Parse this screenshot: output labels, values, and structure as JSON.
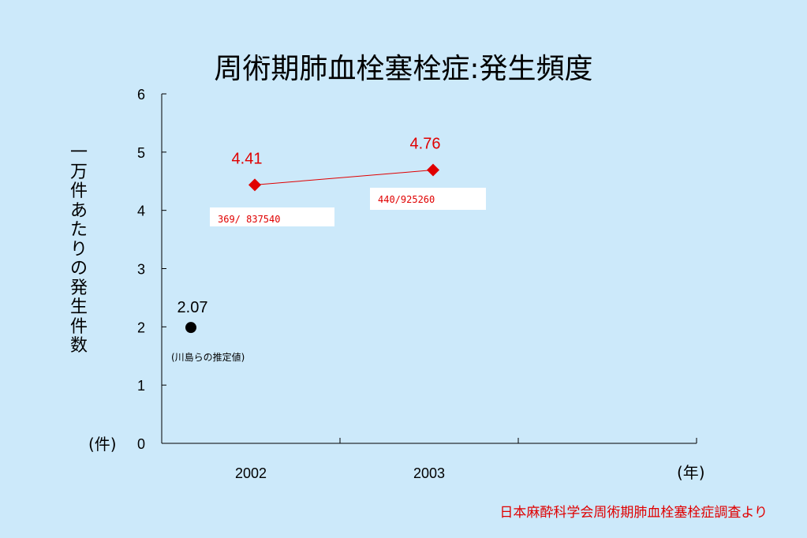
{
  "chart_data": {
    "type": "scatter",
    "title": "周術期肺血栓塞栓症:発生頻度",
    "ylabel": "一万件あたりの発生件数",
    "y_unit": "(件)",
    "x_unit": "(年)",
    "ylim": [
      0,
      6
    ],
    "yticks": [
      "0",
      "1",
      "2",
      "3",
      "4",
      "5",
      "6"
    ],
    "categories": [
      "2002",
      "2003"
    ],
    "estimate": {
      "value": 2.07,
      "label": "2.07",
      "note": "(川島らの推定値)",
      "color": "#000000"
    },
    "series": [
      {
        "values": [
          4.41,
          4.76
        ],
        "labels": [
          "4.41",
          "4.76"
        ],
        "counts": [
          "369/ 837540",
          "440/925260"
        ],
        "color": "#e00000"
      }
    ],
    "grid": false,
    "source": "日本麻酔科学会周術期肺血栓塞栓症調査より"
  }
}
